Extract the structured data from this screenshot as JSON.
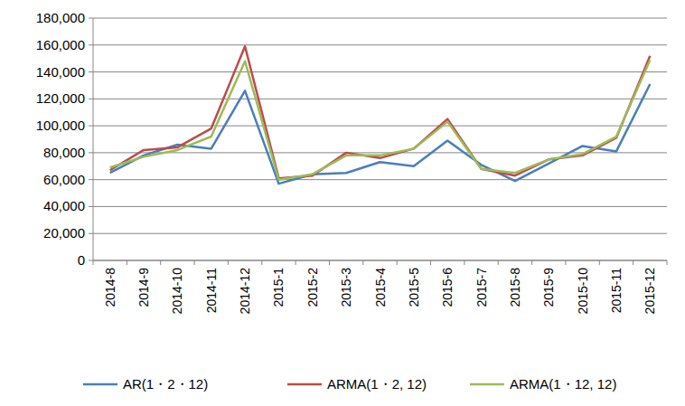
{
  "chart_data": {
    "type": "line",
    "categories": [
      "2014-8",
      "2014-9",
      "2014-10",
      "2014-11",
      "2014-12",
      "2015-1",
      "2015-2",
      "2015-3",
      "2015-4",
      "2015-5",
      "2015-6",
      "2015-7",
      "2015-8",
      "2015-9",
      "2015-10",
      "2015-11",
      "2015-12"
    ],
    "series": [
      {
        "name": "AR(1・2・12)",
        "color": "#4a7ebb",
        "values": [
          65000,
          78000,
          86000,
          83000,
          126000,
          57000,
          64000,
          65000,
          73000,
          70000,
          89000,
          71000,
          59000,
          72000,
          85000,
          81000,
          131000
        ]
      },
      {
        "name": "ARMA(1・2, 12)",
        "color": "#be4b48",
        "values": [
          67000,
          82000,
          84000,
          98000,
          159000,
          61000,
          63000,
          80000,
          76000,
          83000,
          105000,
          68000,
          63000,
          75000,
          78000,
          91000,
          152000
        ]
      },
      {
        "name": "ARMA(1・12, 12)",
        "color": "#9bbb59",
        "values": [
          69000,
          77000,
          82000,
          92000,
          148000,
          60000,
          64000,
          78000,
          78000,
          83000,
          103000,
          68000,
          65000,
          75000,
          79000,
          92000,
          149000
        ]
      }
    ],
    "ylim": [
      0,
      180000
    ],
    "yticks": [
      0,
      {
        "value": 20000,
        "label": "20,000"
      },
      {
        "value": 40000,
        "label": "40,000"
      },
      {
        "value": 60000,
        "label": "60,000"
      },
      {
        "value": 80000,
        "label": "80,000"
      },
      {
        "value": 100000,
        "label": "100,000"
      },
      {
        "value": 120000,
        "label": "120,000"
      },
      {
        "value": 140000,
        "label": "140,000"
      },
      {
        "value": 160000,
        "label": "160,000"
      },
      {
        "value": 180000,
        "label": "180,000"
      }
    ],
    "grid": true,
    "legend": "bottom"
  }
}
